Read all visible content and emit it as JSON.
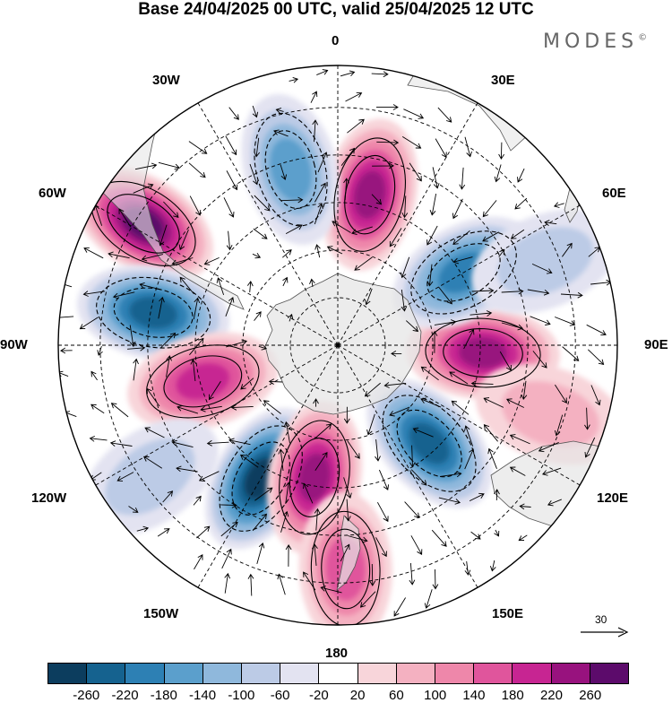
{
  "title": "Base 24/04/2025 00 UTC, valid 25/04/2025 12 UTC",
  "brand": {
    "name": "MODES",
    "mark": "©"
  },
  "projection": "south-polar-stereographic",
  "longitude_labels": {
    "deg0": "0",
    "deg30e": "30E",
    "deg60e": "60E",
    "deg90e": "90E",
    "deg120e": "120E",
    "deg150e": "150E",
    "deg180": "180",
    "deg150w": "150W",
    "deg120w": "120W",
    "deg90w": "90W",
    "deg60w": "60W",
    "deg30w": "30W"
  },
  "colorbar": {
    "ticks": [
      "-260",
      "-220",
      "-180",
      "-140",
      "-100",
      "-60",
      "-20",
      "20",
      "60",
      "100",
      "140",
      "180",
      "220",
      "260"
    ],
    "colors": [
      "#0c3d5e",
      "#15628f",
      "#2d80b4",
      "#5b9fcc",
      "#8fb8dc",
      "#bccbe6",
      "#e3e3f1",
      "#ffffff",
      "#f8d5da",
      "#f4b1c1",
      "#ee87aa",
      "#e0559c",
      "#c72592",
      "#98127e",
      "#5c0b6b"
    ]
  },
  "wind_reference": {
    "value": "30"
  },
  "anomaly_centers": [
    {
      "sign": "positive",
      "level": 6,
      "lon": 12,
      "lat_frac": 0.55
    },
    {
      "sign": "negative",
      "level": 4,
      "lon": -15,
      "lat_frac": 0.65
    },
    {
      "sign": "positive",
      "level": 7,
      "lon": -58,
      "lat_frac": 0.82
    },
    {
      "sign": "negative",
      "level": 6,
      "lon": -80,
      "lat_frac": 0.67
    },
    {
      "sign": "positive",
      "level": 5,
      "lon": -105,
      "lat_frac": 0.5
    },
    {
      "sign": "negative",
      "level": 7,
      "lon": -150,
      "lat_frac": 0.55
    },
    {
      "sign": "positive",
      "level": 6,
      "lon": -170,
      "lat_frac": 0.48
    },
    {
      "sign": "positive",
      "level": 4,
      "lon": 178,
      "lat_frac": 0.8
    },
    {
      "sign": "negative",
      "level": 6,
      "lon": 137,
      "lat_frac": 0.48
    },
    {
      "sign": "positive",
      "level": 6,
      "lon": 93,
      "lat_frac": 0.52
    },
    {
      "sign": "negative",
      "level": 5,
      "lon": 60,
      "lat_frac": 0.52
    },
    {
      "sign": "negative",
      "level": 2,
      "lon": 68,
      "lat_frac": 0.8
    },
    {
      "sign": "positive",
      "level": 2,
      "lon": 108,
      "lat_frac": 0.8
    },
    {
      "sign": "negative",
      "level": 2,
      "lon": -125,
      "lat_frac": 0.82
    }
  ]
}
